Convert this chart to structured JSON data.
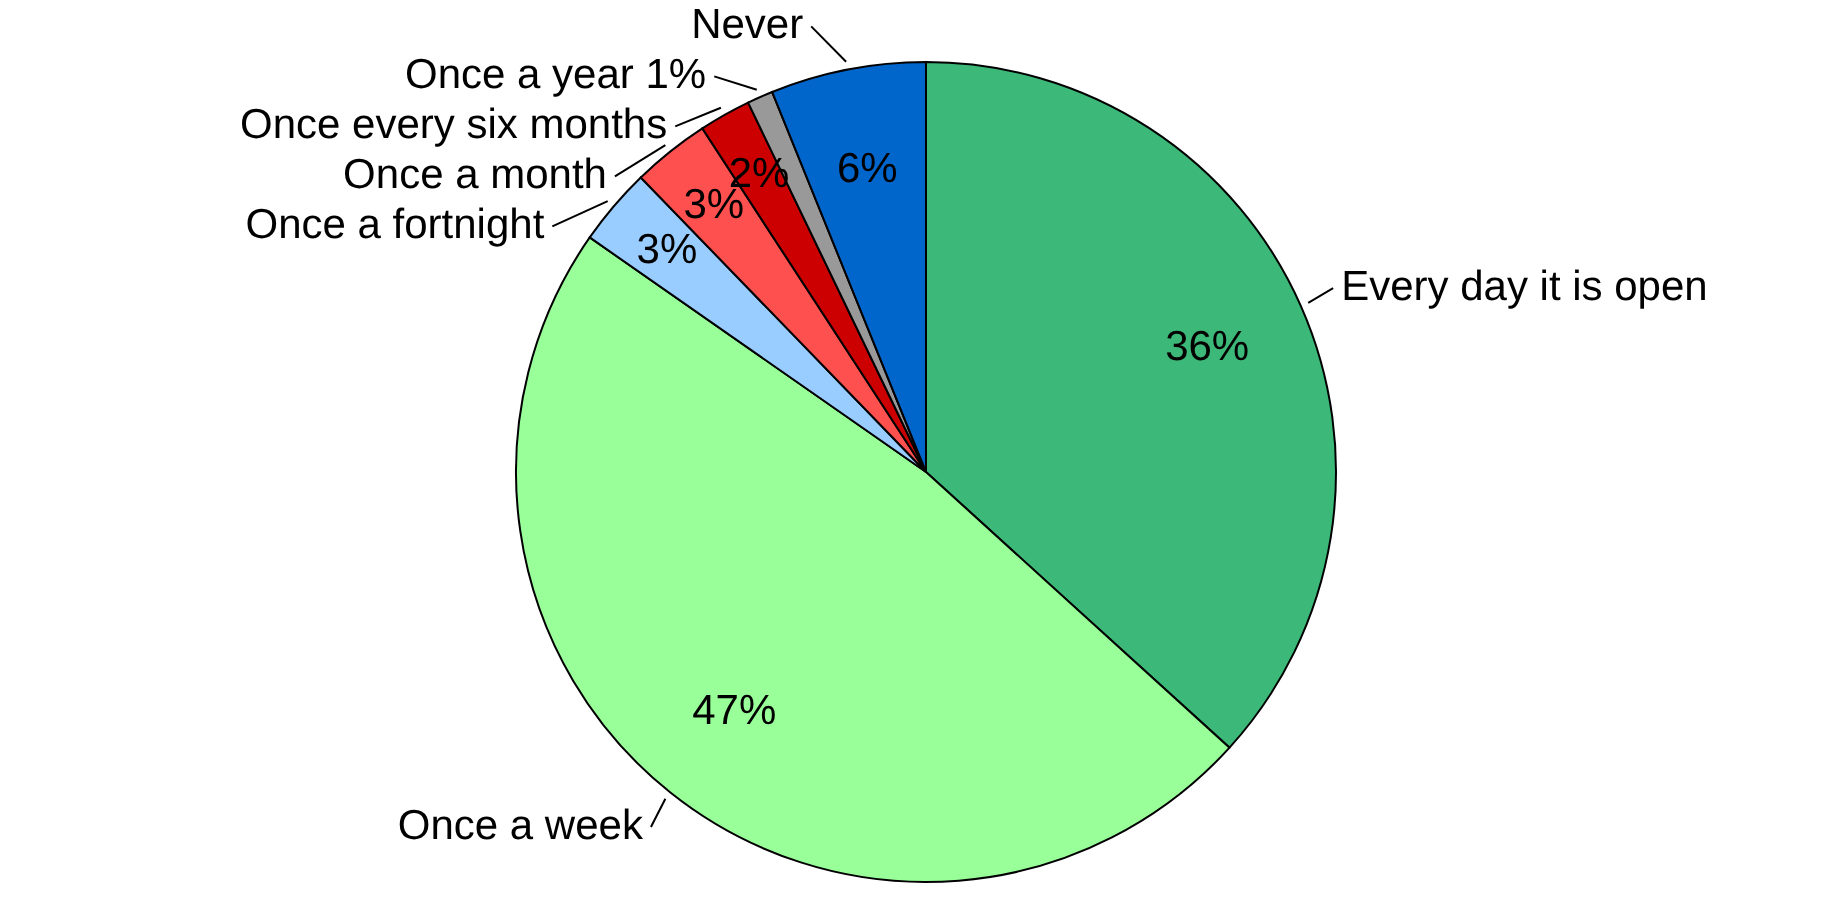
{
  "chart_data": {
    "type": "pie",
    "categories": [
      "Every day it is open",
      "Once a week",
      "Once a fortnight",
      "Once a month",
      "Once every six months",
      "Once a year 1%",
      "Never"
    ],
    "values": [
      36,
      47,
      3,
      3,
      2,
      1,
      6
    ],
    "colors": [
      "#3cb878",
      "#99ff99",
      "#99ccff",
      "#ff5050",
      "#cc0000",
      "#999999",
      "#0066cc"
    ],
    "value_labels": [
      "36%",
      "47%",
      "3%",
      "3%",
      "2%",
      null,
      "6%"
    ]
  }
}
